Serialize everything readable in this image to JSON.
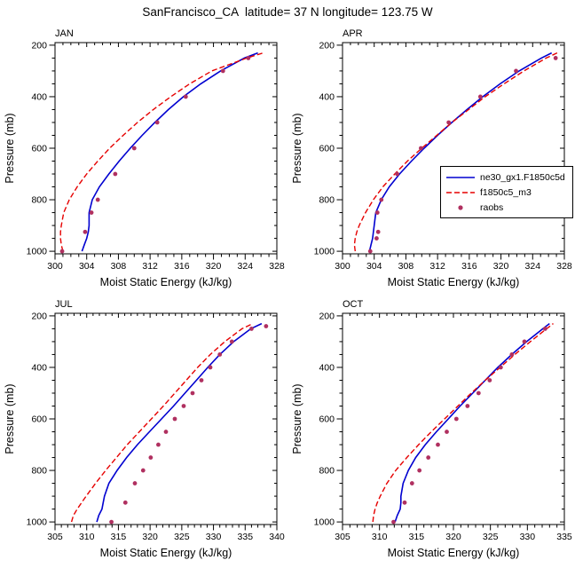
{
  "title": "SanFrancisco_CA  latitude= 37 N longitude= 123.75 W",
  "legend": {
    "entries": [
      {
        "label": "ne30_gx1.F1850c5d",
        "color": "#0000d0",
        "style": "solid"
      },
      {
        "label": "f1850c5_m3",
        "color": "#e60000",
        "style": "dashed"
      },
      {
        "label": "raobs",
        "color": "#b03060",
        "style": "dot"
      }
    ]
  },
  "chart_data": [
    {
      "type": "line",
      "title": "JAN",
      "xlabel": "Moist Static Energy (kJ/kg)",
      "ylabel": "Pressure (mb)",
      "xlim": [
        300,
        328
      ],
      "xticks": [
        300,
        304,
        308,
        312,
        316,
        320,
        324,
        328
      ],
      "xminor_step": 1,
      "yticks": [
        200,
        400,
        600,
        800,
        1000
      ],
      "yminor_step": 50,
      "ydisplay": [
        190,
        1010
      ],
      "y_axis": "reversed_pressure",
      "series": [
        {
          "name": "ne30_gx1.F1850c5d",
          "style": "solid",
          "pressure": [
            1000,
            975,
            950,
            925,
            900,
            850,
            800,
            750,
            700,
            650,
            600,
            550,
            500,
            450,
            400,
            350,
            300,
            250,
            230
          ],
          "values": [
            303.4,
            303.7,
            304.0,
            304.2,
            304.3,
            304.3,
            304.7,
            305.6,
            306.8,
            308.1,
            309.5,
            311.0,
            312.6,
            314.3,
            316.2,
            318.4,
            320.9,
            323.9,
            325.6
          ]
        },
        {
          "name": "f1850c5_m3",
          "style": "dashed",
          "pressure": [
            1000,
            975,
            950,
            925,
            900,
            850,
            800,
            750,
            700,
            650,
            600,
            550,
            500,
            450,
            400,
            350,
            300,
            250,
            230
          ],
          "values": [
            301.0,
            300.8,
            300.7,
            300.7,
            300.8,
            301.1,
            301.8,
            302.8,
            304.0,
            305.4,
            306.9,
            308.6,
            310.4,
            312.4,
            314.6,
            317.0,
            319.8,
            324.2,
            326.3
          ]
        },
        {
          "name": "raobs",
          "style": "dot",
          "pressure": [
            1000,
            925,
            850,
            800,
            700,
            600,
            500,
            400,
            300,
            250
          ],
          "values": [
            300.9,
            303.8,
            304.6,
            305.4,
            307.6,
            310.0,
            312.9,
            316.5,
            321.2,
            324.4
          ]
        }
      ]
    },
    {
      "type": "line",
      "title": "APR",
      "xlabel": "Moist Static Energy (kJ/kg)",
      "ylabel": "Pressure (mb)",
      "xlim": [
        300,
        328
      ],
      "xticks": [
        300,
        304,
        308,
        312,
        316,
        320,
        324,
        328
      ],
      "xminor_step": 1,
      "yticks": [
        200,
        400,
        600,
        800,
        1000
      ],
      "yminor_step": 50,
      "ydisplay": [
        190,
        1010
      ],
      "y_axis": "reversed_pressure",
      "series": [
        {
          "name": "ne30_gx1.F1850c5d",
          "style": "solid",
          "pressure": [
            1000,
            975,
            950,
            925,
            900,
            850,
            800,
            750,
            700,
            650,
            600,
            550,
            500,
            450,
            400,
            350,
            300,
            250,
            230
          ],
          "values": [
            303.4,
            303.6,
            303.8,
            303.9,
            304.0,
            304.2,
            304.9,
            305.9,
            307.2,
            308.7,
            310.3,
            312.0,
            313.8,
            315.7,
            317.7,
            319.9,
            322.3,
            325.1,
            326.4
          ]
        },
        {
          "name": "f1850c5_m3",
          "style": "dashed",
          "pressure": [
            1000,
            975,
            950,
            925,
            900,
            850,
            800,
            750,
            700,
            650,
            600,
            550,
            500,
            450,
            400,
            350,
            300,
            250,
            230
          ],
          "values": [
            301.6,
            301.5,
            301.6,
            301.8,
            302.1,
            302.9,
            303.9,
            305.1,
            306.6,
            308.2,
            310.0,
            311.9,
            313.8,
            315.9,
            318.0,
            320.4,
            322.9,
            325.7,
            327.1
          ]
        },
        {
          "name": "raobs",
          "style": "dot",
          "pressure": [
            1000,
            950,
            925,
            850,
            800,
            700,
            600,
            500,
            400,
            300,
            250
          ],
          "values": [
            303.5,
            304.3,
            304.5,
            304.4,
            304.9,
            306.9,
            309.9,
            313.4,
            317.4,
            321.9,
            326.9
          ]
        }
      ]
    },
    {
      "type": "line",
      "title": "JUL",
      "xlabel": "Moist Static Energy (kJ/kg)",
      "ylabel": "Pressure (mb)",
      "xlim": [
        305,
        340
      ],
      "xticks": [
        305,
        310,
        315,
        320,
        325,
        330,
        335,
        340
      ],
      "xminor_step": 1,
      "yticks": [
        200,
        400,
        600,
        800,
        1000
      ],
      "yminor_step": 50,
      "ydisplay": [
        190,
        1010
      ],
      "y_axis": "reversed_pressure",
      "series": [
        {
          "name": "ne30_gx1.F1850c5d",
          "style": "solid",
          "pressure": [
            1000,
            975,
            950,
            925,
            900,
            850,
            800,
            750,
            700,
            650,
            600,
            550,
            500,
            450,
            400,
            350,
            300,
            250,
            230
          ],
          "values": [
            311.6,
            311.9,
            312.4,
            312.6,
            312.8,
            313.5,
            314.8,
            316.3,
            318.0,
            319.9,
            321.8,
            323.7,
            325.5,
            327.3,
            329.1,
            331.0,
            333.2,
            335.9,
            337.6
          ]
        },
        {
          "name": "f1850c5_m3",
          "style": "dashed",
          "pressure": [
            1000,
            975,
            950,
            925,
            900,
            850,
            800,
            750,
            700,
            650,
            600,
            550,
            500,
            450,
            400,
            350,
            300,
            250,
            230
          ],
          "values": [
            307.6,
            307.9,
            308.5,
            309.2,
            309.9,
            311.4,
            313.0,
            314.7,
            316.4,
            318.3,
            320.2,
            322.1,
            323.9,
            325.7,
            327.5,
            329.5,
            331.8,
            334.5,
            336.2
          ]
        },
        {
          "name": "raobs",
          "style": "dot",
          "pressure": [
            1000,
            925,
            850,
            800,
            750,
            700,
            650,
            600,
            550,
            500,
            450,
            400,
            350,
            300,
            250,
            240
          ],
          "values": [
            313.9,
            316.1,
            317.6,
            318.9,
            320.1,
            321.3,
            322.5,
            323.9,
            325.3,
            326.7,
            328.1,
            329.5,
            331.0,
            332.9,
            336.0,
            338.3
          ]
        }
      ]
    },
    {
      "type": "line",
      "title": "OCT",
      "xlabel": "Moist Static Energy (kJ/kg)",
      "ylabel": "Pressure (mb)",
      "xlim": [
        305,
        335
      ],
      "xticks": [
        305,
        310,
        315,
        320,
        325,
        330,
        335
      ],
      "xminor_step": 1,
      "yticks": [
        200,
        400,
        600,
        800,
        1000
      ],
      "yminor_step": 50,
      "ydisplay": [
        190,
        1010
      ],
      "y_axis": "reversed_pressure",
      "series": [
        {
          "name": "ne30_gx1.F1850c5d",
          "style": "solid",
          "pressure": [
            1000,
            975,
            950,
            925,
            900,
            850,
            800,
            750,
            700,
            650,
            600,
            550,
            500,
            450,
            400,
            350,
            300,
            250,
            230
          ],
          "values": [
            312.1,
            312.4,
            312.8,
            312.9,
            312.9,
            313.2,
            313.9,
            314.9,
            316.2,
            317.7,
            319.3,
            320.9,
            322.6,
            324.3,
            326.0,
            327.9,
            329.9,
            332.1,
            333.0
          ]
        },
        {
          "name": "f1850c5_m3",
          "style": "dashed",
          "pressure": [
            1000,
            975,
            950,
            925,
            900,
            850,
            800,
            750,
            700,
            650,
            600,
            550,
            500,
            450,
            400,
            350,
            300,
            250,
            230
          ],
          "values": [
            309.1,
            309.2,
            309.4,
            309.7,
            310.1,
            311.0,
            312.2,
            313.7,
            315.3,
            317.0,
            318.8,
            320.6,
            322.4,
            324.3,
            326.3,
            328.3,
            330.4,
            332.6,
            333.5
          ]
        },
        {
          "name": "raobs",
          "style": "dot",
          "pressure": [
            1000,
            925,
            850,
            800,
            750,
            700,
            650,
            600,
            550,
            500,
            450,
            400,
            350,
            300,
            250
          ],
          "values": [
            311.9,
            313.4,
            314.4,
            315.4,
            316.6,
            317.9,
            319.1,
            320.4,
            321.9,
            323.4,
            324.9,
            326.4,
            327.9,
            329.6,
            332.4
          ]
        }
      ]
    }
  ]
}
